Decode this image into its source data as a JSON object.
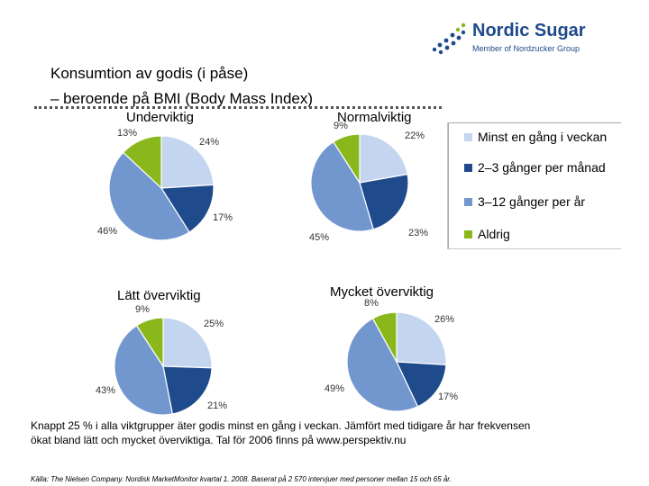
{
  "brand": {
    "name": "Nordic Sugar",
    "tagline": "Member of Nordzucker Group",
    "color": "#1e4a8a"
  },
  "slide": {
    "title_line1": "Konsumtion av godis (i påse)",
    "title_line2": "– beroende på BMI (Body Mass Index)",
    "note": "Knappt 25 % i alla viktgrupper äter godis minst en gång i veckan. Jämfört med tidigare år har frekvensen ökat bland lätt och mycket överviktiga. Tal för 2006 finns på www.perspektiv.nu",
    "source": "Källa: The Nielsen Company. Nordisk MarketMonitor kvartal 1. 2008. Baserat på 2 570 intervjuer med personer mellan 15 och 65 år."
  },
  "chart_data": {
    "type": "pie",
    "series_names": [
      "Minst en gång i veckan",
      "2–3 gånger per månad",
      "3–12 gånger per år",
      "Aldrig"
    ],
    "colors": [
      "#c3d5ef",
      "#1f4a8c",
      "#7297cf",
      "#8ab81c"
    ],
    "charts": [
      {
        "title": "Underviktig",
        "values": [
          24,
          17,
          46,
          13
        ],
        "labels": [
          "24%",
          "17%",
          "46%",
          "13%"
        ]
      },
      {
        "title": "Normalviktig",
        "values": [
          22,
          23,
          45,
          9
        ],
        "labels": [
          "22%",
          "23%",
          "45%",
          "9%"
        ]
      },
      {
        "title": "Lätt överviktig",
        "values": [
          25,
          21,
          43,
          9
        ],
        "labels": [
          "25%",
          "21%",
          "43%",
          "9%"
        ]
      },
      {
        "title": "Mycket överviktig",
        "values": [
          26,
          17,
          49,
          8
        ],
        "labels": [
          "26%",
          "17%",
          "49%",
          "8%"
        ]
      }
    ]
  }
}
